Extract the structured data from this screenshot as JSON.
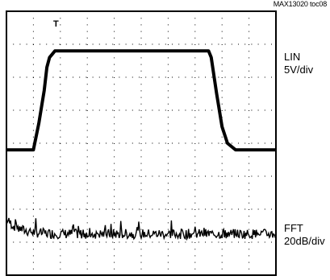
{
  "figure_id": "MAX13020 toc08",
  "trigger_marker": "T",
  "channels": {
    "lin": {
      "name": "LIN",
      "scale": "5V/div"
    },
    "fft": {
      "name": "FFT",
      "scale": "20dB/div"
    }
  },
  "chart_data": {
    "type": "line",
    "title": "",
    "grid": true,
    "grid_divisions": {
      "horizontal": 10,
      "vertical": 8
    },
    "series": [
      {
        "name": "LIN",
        "units": "divisions",
        "x": [
          0,
          1.0,
          1.2,
          1.4,
          1.5,
          1.6,
          1.7,
          1.8,
          7.5,
          7.6,
          7.8,
          8.0,
          8.2,
          8.5,
          10
        ],
        "y": [
          3.8,
          3.8,
          4.6,
          5.6,
          6.3,
          6.6,
          6.7,
          6.8,
          6.8,
          6.6,
          5.5,
          4.5,
          4.0,
          3.8,
          3.8
        ]
      },
      {
        "name": "FFT",
        "units": "divisions",
        "baseline_y": 1.25,
        "start_level_y": 1.7,
        "noise_amplitude": 0.3
      }
    ]
  }
}
